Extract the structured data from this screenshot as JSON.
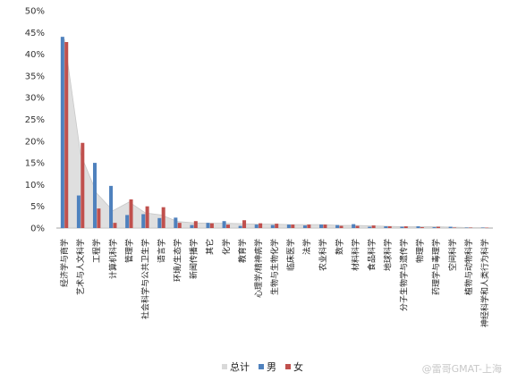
{
  "chart_data": {
    "type": "bar",
    "ylim": [
      0,
      50
    ],
    "y_ticks": [
      "0%",
      "5%",
      "10%",
      "15%",
      "20%",
      "25%",
      "30%",
      "35%",
      "40%",
      "45%",
      "50%"
    ],
    "grid": false,
    "legend_position": "bottom",
    "categories": [
      "经济学与商学",
      "艺术与人文科学",
      "工程学",
      "计算机科学",
      "管理学",
      "社会科学与公共卫生学",
      "语言学",
      "环境/生态学",
      "新闻传播学",
      "其它",
      "化学",
      "教育学",
      "心理学/精神病学",
      "生物与生物化学",
      "临床医学",
      "法学",
      "农业科学",
      "数学",
      "材料科学",
      "食品科学",
      "地球科学",
      "分子生物学与遗传学",
      "物理学",
      "药理学与毒理学",
      "空间科学",
      "植物与动物科学",
      "神经科学和人类行为科学"
    ],
    "series": [
      {
        "name": "总计",
        "color": "#d9d9d9",
        "values": [
          43.5,
          17,
          8,
          4,
          6,
          3.5,
          3,
          1.5,
          1.2,
          1.1,
          1.1,
          1,
          0.9,
          0.9,
          0.8,
          0.8,
          0.8,
          0.6,
          0.6,
          0.5,
          0.4,
          0.3,
          0.3,
          0.3,
          0.2,
          0.1,
          0.1
        ]
      },
      {
        "name": "男",
        "color": "#4f81bd",
        "values": [
          44,
          7.5,
          15,
          9.7,
          3,
          3.2,
          2.3,
          2.4,
          0.7,
          1.2,
          1.6,
          0.5,
          0.8,
          0.7,
          0.8,
          0.6,
          0.8,
          0.7,
          0.9,
          0.3,
          0.4,
          0.3,
          0.4,
          0.2,
          0.3,
          0.1,
          0.1
        ]
      },
      {
        "name": "女",
        "color": "#c0504d",
        "values": [
          42.8,
          19.6,
          4.5,
          1.2,
          6.6,
          5,
          4.8,
          1.2,
          1.6,
          1.1,
          0.8,
          1.8,
          1.1,
          1,
          0.8,
          0.8,
          0.8,
          0.5,
          0.5,
          0.6,
          0.4,
          0.4,
          0.2,
          0.3,
          0.1,
          0.1,
          0.1
        ]
      }
    ]
  },
  "watermark": "@雷哥GMAT-上海"
}
